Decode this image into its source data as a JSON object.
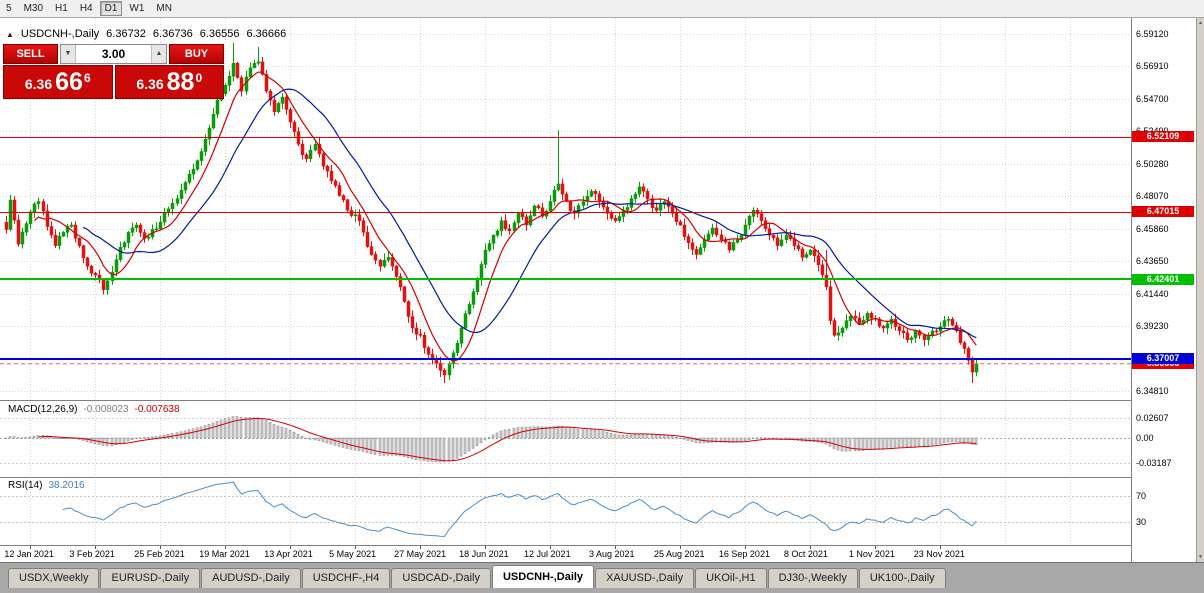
{
  "colors": {
    "bull": "#0B9B0B",
    "bear": "#E21212",
    "ma_fast": "#D40000",
    "ma_slow": "#001C9C",
    "macd_hist_fill": "#D0D0D0",
    "macd_hist_border": "#909090",
    "macd_signal": "#D40000",
    "rsi_line": "#4A8FC6",
    "grid": "#D6D6D6",
    "bid_line": "#E06666"
  },
  "toolbar": {
    "timeframes": [
      "5",
      "M30",
      "H1",
      "H4",
      "D1",
      "W1",
      "MN"
    ],
    "active": "D1"
  },
  "header": {
    "symbol": "USDCNH-,Daily",
    "open": "6.36732",
    "high": "6.36736",
    "low": "6.36556",
    "close": "6.36666"
  },
  "icons": {
    "one_click_toggle": "▲",
    "vol_up": "▲",
    "vol_down": "▼",
    "scroll_up": "▲",
    "scroll_down": "▼"
  },
  "trade_panel": {
    "sell_label": "SELL",
    "buy_label": "BUY",
    "volume": "3.00",
    "sell_price": {
      "big": "6.36",
      "pips": "66",
      "pip": "6"
    },
    "buy_price": {
      "big": "6.36",
      "pips": "88",
      "pip": "0"
    }
  },
  "price_axis": {
    "ticks": [
      "6.59120",
      "6.56910",
      "6.54700",
      "6.52490",
      "6.50280",
      "6.48070",
      "6.45860",
      "6.43650",
      "6.41440",
      "6.39230",
      "6.37020",
      "6.34810"
    ]
  },
  "hlines": [
    {
      "price": 6.52109,
      "label": "6.52109",
      "color": "#E00000",
      "width": 1
    },
    {
      "price": 6.47015,
      "label": "6.47015",
      "color": "#E00000",
      "width": 1
    },
    {
      "price": 6.42401,
      "label": "6.42401",
      "color": "#00BE00",
      "width": 2
    },
    {
      "price": 6.37007,
      "label": "6.37007",
      "color": "#0000D8",
      "width": 2
    }
  ],
  "bid_label": {
    "price": 6.36666,
    "label": "6.36666",
    "color": "#E00000"
  },
  "macd_panel": {
    "title": "MACD(12,26,9)",
    "value_main": "-0.008023",
    "value_signal": "-0.007638",
    "axis": [
      {
        "v": 0.02607,
        "label": "0.02607"
      },
      {
        "v": 0,
        "label": "0.00"
      },
      {
        "v": -0.03187,
        "label": "-0.03187"
      }
    ]
  },
  "rsi_panel": {
    "title": "RSI(14)",
    "value": "38.2016",
    "levels": [
      {
        "v": 70,
        "label": "70"
      },
      {
        "v": 30,
        "label": "30"
      }
    ]
  },
  "date_axis": [
    "12 Jan 2021",
    "3 Feb 2021",
    "25 Feb 2021",
    "19 Mar 2021",
    "13 Apr 2021",
    "5 May 2021",
    "27 May 2021",
    "18 Jun 2021",
    "12 Jul 2021",
    "3 Aug 2021",
    "25 Aug 2021",
    "16 Sep 2021",
    "8 Oct 2021",
    "1 Nov 2021",
    "23 Nov 2021"
  ],
  "tabs": [
    {
      "label": "USDX,Weekly",
      "active": false
    },
    {
      "label": "EURUSD-,Daily",
      "active": false
    },
    {
      "label": "AUDUSD-,Daily",
      "active": false
    },
    {
      "label": "USDCHF-,H4",
      "active": false
    },
    {
      "label": "USDCAD-,Daily",
      "active": false
    },
    {
      "label": "USDCNH-,Daily",
      "active": true
    },
    {
      "label": "XAUUSD-,Daily",
      "active": false
    },
    {
      "label": "UKOil-,H1",
      "active": false
    },
    {
      "label": "DJ30-,Weekly",
      "active": false
    },
    {
      "label": "UK100-,Daily",
      "active": false
    }
  ],
  "chart_data": {
    "type": "candlestick",
    "symbol": "USDCNH",
    "timeframe": "Daily",
    "ylim": [
      6.342,
      6.6018
    ],
    "bars_total": 240,
    "date_tick_first_bar": 6,
    "date_tick_step": 16,
    "anchors": [
      [
        0,
        6.458
      ],
      [
        1,
        6.478
      ],
      [
        3,
        6.448
      ],
      [
        5,
        6.462
      ],
      [
        6,
        6.47
      ],
      [
        8,
        6.477
      ],
      [
        10,
        6.46
      ],
      [
        12,
        6.447
      ],
      [
        14,
        6.456
      ],
      [
        16,
        6.461
      ],
      [
        18,
        6.447
      ],
      [
        20,
        6.433
      ],
      [
        22,
        6.427
      ],
      [
        24,
        6.417
      ],
      [
        26,
        6.429
      ],
      [
        28,
        6.446
      ],
      [
        30,
        6.456
      ],
      [
        32,
        6.461
      ],
      [
        34,
        6.452
      ],
      [
        36,
        6.458
      ],
      [
        38,
        6.463
      ],
      [
        40,
        6.472
      ],
      [
        42,
        6.479
      ],
      [
        44,
        6.49
      ],
      [
        46,
        6.499
      ],
      [
        48,
        6.511
      ],
      [
        50,
        6.527
      ],
      [
        52,
        6.546
      ],
      [
        54,
        6.556
      ],
      [
        56,
        6.571
      ],
      [
        58,
        6.552
      ],
      [
        60,
        6.568
      ],
      [
        62,
        6.572
      ],
      [
        64,
        6.552
      ],
      [
        66,
        6.538
      ],
      [
        68,
        6.548
      ],
      [
        70,
        6.531
      ],
      [
        72,
        6.516
      ],
      [
        74,
        6.506
      ],
      [
        76,
        6.516
      ],
      [
        78,
        6.501
      ],
      [
        80,
        6.491
      ],
      [
        82,
        6.481
      ],
      [
        84,
        6.471
      ],
      [
        86,
        6.468
      ],
      [
        88,
        6.456
      ],
      [
        90,
        6.441
      ],
      [
        92,
        6.433
      ],
      [
        94,
        6.439
      ],
      [
        96,
        6.426
      ],
      [
        98,
        6.409
      ],
      [
        100,
        6.391
      ],
      [
        102,
        6.386
      ],
      [
        104,
        6.373
      ],
      [
        106,
        6.367
      ],
      [
        108,
        6.359
      ],
      [
        110,
        6.374
      ],
      [
        112,
        6.391
      ],
      [
        114,
        6.407
      ],
      [
        116,
        6.424
      ],
      [
        118,
        6.444
      ],
      [
        120,
        6.454
      ],
      [
        122,
        6.464
      ],
      [
        124,
        6.457
      ],
      [
        126,
        6.469
      ],
      [
        128,
        6.461
      ],
      [
        130,
        6.474
      ],
      [
        132,
        6.467
      ],
      [
        134,
        6.477
      ],
      [
        136,
        6.489
      ],
      [
        138,
        6.477
      ],
      [
        140,
        6.469
      ],
      [
        142,
        6.477
      ],
      [
        144,
        6.484
      ],
      [
        146,
        6.477
      ],
      [
        148,
        6.469
      ],
      [
        150,
        6.464
      ],
      [
        152,
        6.471
      ],
      [
        154,
        6.479
      ],
      [
        156,
        6.487
      ],
      [
        158,
        6.479
      ],
      [
        160,
        6.471
      ],
      [
        162,
        6.477
      ],
      [
        164,
        6.469
      ],
      [
        166,
        6.461
      ],
      [
        168,
        6.449
      ],
      [
        170,
        6.441
      ],
      [
        172,
        6.451
      ],
      [
        174,
        6.459
      ],
      [
        176,
        6.451
      ],
      [
        178,
        6.444
      ],
      [
        180,
        6.451
      ],
      [
        182,
        6.461
      ],
      [
        184,
        6.471
      ],
      [
        186,
        6.464
      ],
      [
        188,
        6.454
      ],
      [
        190,
        6.447
      ],
      [
        192,
        6.454
      ],
      [
        194,
        6.447
      ],
      [
        196,
        6.439
      ],
      [
        198,
        6.444
      ],
      [
        200,
        6.434
      ],
      [
        202,
        6.419
      ],
      [
        203,
        6.396
      ],
      [
        204,
        6.386
      ],
      [
        206,
        6.391
      ],
      [
        208,
        6.399
      ],
      [
        210,
        6.394
      ],
      [
        212,
        6.401
      ],
      [
        214,
        6.397
      ],
      [
        216,
        6.391
      ],
      [
        218,
        6.397
      ],
      [
        220,
        6.389
      ],
      [
        222,
        6.383
      ],
      [
        224,
        6.389
      ],
      [
        226,
        6.383
      ],
      [
        228,
        6.389
      ],
      [
        230,
        6.392
      ],
      [
        232,
        6.397
      ],
      [
        234,
        6.389
      ],
      [
        236,
        6.377
      ],
      [
        237,
        6.369
      ],
      [
        238,
        6.361
      ],
      [
        239,
        6.3667
      ]
    ],
    "spikes": [
      {
        "i": 56,
        "high": 6.585
      },
      {
        "i": 62,
        "high": 6.582
      },
      {
        "i": 108,
        "low": 6.3535
      },
      {
        "i": 136,
        "high": 6.5255
      },
      {
        "i": 202,
        "high": 6.444
      },
      {
        "i": 238,
        "low": 6.3535
      }
    ],
    "ma_fast_period": 8,
    "ma_slow_period": 20,
    "macd": {
      "fast": 12,
      "slow": 26,
      "signal": 9
    },
    "rsi_period": 14
  }
}
